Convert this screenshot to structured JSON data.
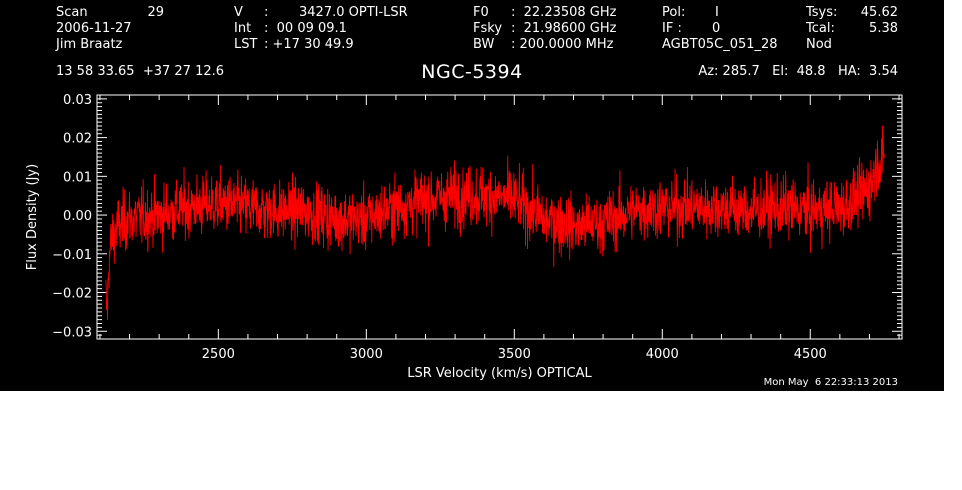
{
  "header": {
    "scan_label": "Scan",
    "scan_value": "29",
    "date": "2006-11-27",
    "observer": "Jim Braatz",
    "position": "13 58 33.65  +37 27 12.6",
    "v_label": "V",
    "v_sep": ":",
    "v_value": "3427.0 OPTI-LSR",
    "int_label": "Int",
    "int_value": ":  00 09 09.1",
    "lst_label": "LST",
    "lst_value": ": +17 30 49.9",
    "f0_label": "F0",
    "f0_value": ":  22.23508 GHz",
    "fsky_label": "Fsky",
    "fsky_value": ":  21.98600 GHz",
    "bw_label": "BW",
    "bw_value": ": 200.0000 MHz",
    "pol_label": "Pol:",
    "pol_value": "I",
    "if_label": "IF :",
    "if_value": "0",
    "project": "AGBT05C_051_28",
    "tsys_label": "Tsys:",
    "tsys_value": "45.62",
    "tcal_label": "Tcal:",
    "tcal_value": "5.38",
    "mode": "Nod",
    "az_el_ha": "Az: 285.7   El:  48.8   HA:  3.54"
  },
  "timestamp": "Mon May  6 22:33:13 2013",
  "colors": {
    "background": "#000000",
    "foreground": "#ffffff",
    "series": "#ff0000"
  },
  "chart_data": {
    "type": "line",
    "title": "NGC-5394",
    "xlabel": "LSR Velocity (km/s) OPTICAL",
    "ylabel": "Flux Density (Jy)",
    "xlim": [
      2090,
      4810
    ],
    "ylim": [
      -0.032,
      0.031
    ],
    "xticks": [
      2500,
      3000,
      3500,
      4000,
      4500
    ],
    "xtick_labels": [
      "2500",
      "3000",
      "3500",
      "4000",
      "4500"
    ],
    "yticks": [
      -0.03,
      -0.02,
      -0.01,
      0.0,
      0.01,
      0.02,
      0.03
    ],
    "ytick_labels": [
      "−0.03",
      "−0.02",
      "−0.01",
      "0.00",
      "0.01",
      "0.02",
      "0.03"
    ],
    "grid": false,
    "legend": "none",
    "series": [
      {
        "color": "#ff0000",
        "x": [
          2120,
          2125,
          2130,
          2140,
          2160,
          2200,
          2300,
          2400,
          2500,
          2600,
          2700,
          2800,
          2900,
          3000,
          3100,
          3200,
          3300,
          3400,
          3500,
          3600,
          3700,
          3800,
          3900,
          4000,
          4100,
          4200,
          4300,
          4400,
          4500,
          4600,
          4650,
          4700,
          4720,
          4740,
          4750
        ],
        "y": [
          -0.022,
          -0.025,
          -0.012,
          -0.006,
          -0.003,
          -0.001,
          0.0,
          0.002,
          0.003,
          0.002,
          0.001,
          0.001,
          -0.001,
          -0.001,
          0.002,
          0.004,
          0.005,
          0.005,
          0.004,
          -0.001,
          -0.003,
          -0.002,
          0.001,
          0.002,
          0.002,
          0.002,
          0.001,
          0.002,
          0.001,
          0.002,
          0.004,
          0.007,
          0.012,
          0.015,
          0.014
        ],
        "noise_rms": 0.0055,
        "peaks": {
          "max": 0.023,
          "min": -0.027
        }
      }
    ]
  }
}
